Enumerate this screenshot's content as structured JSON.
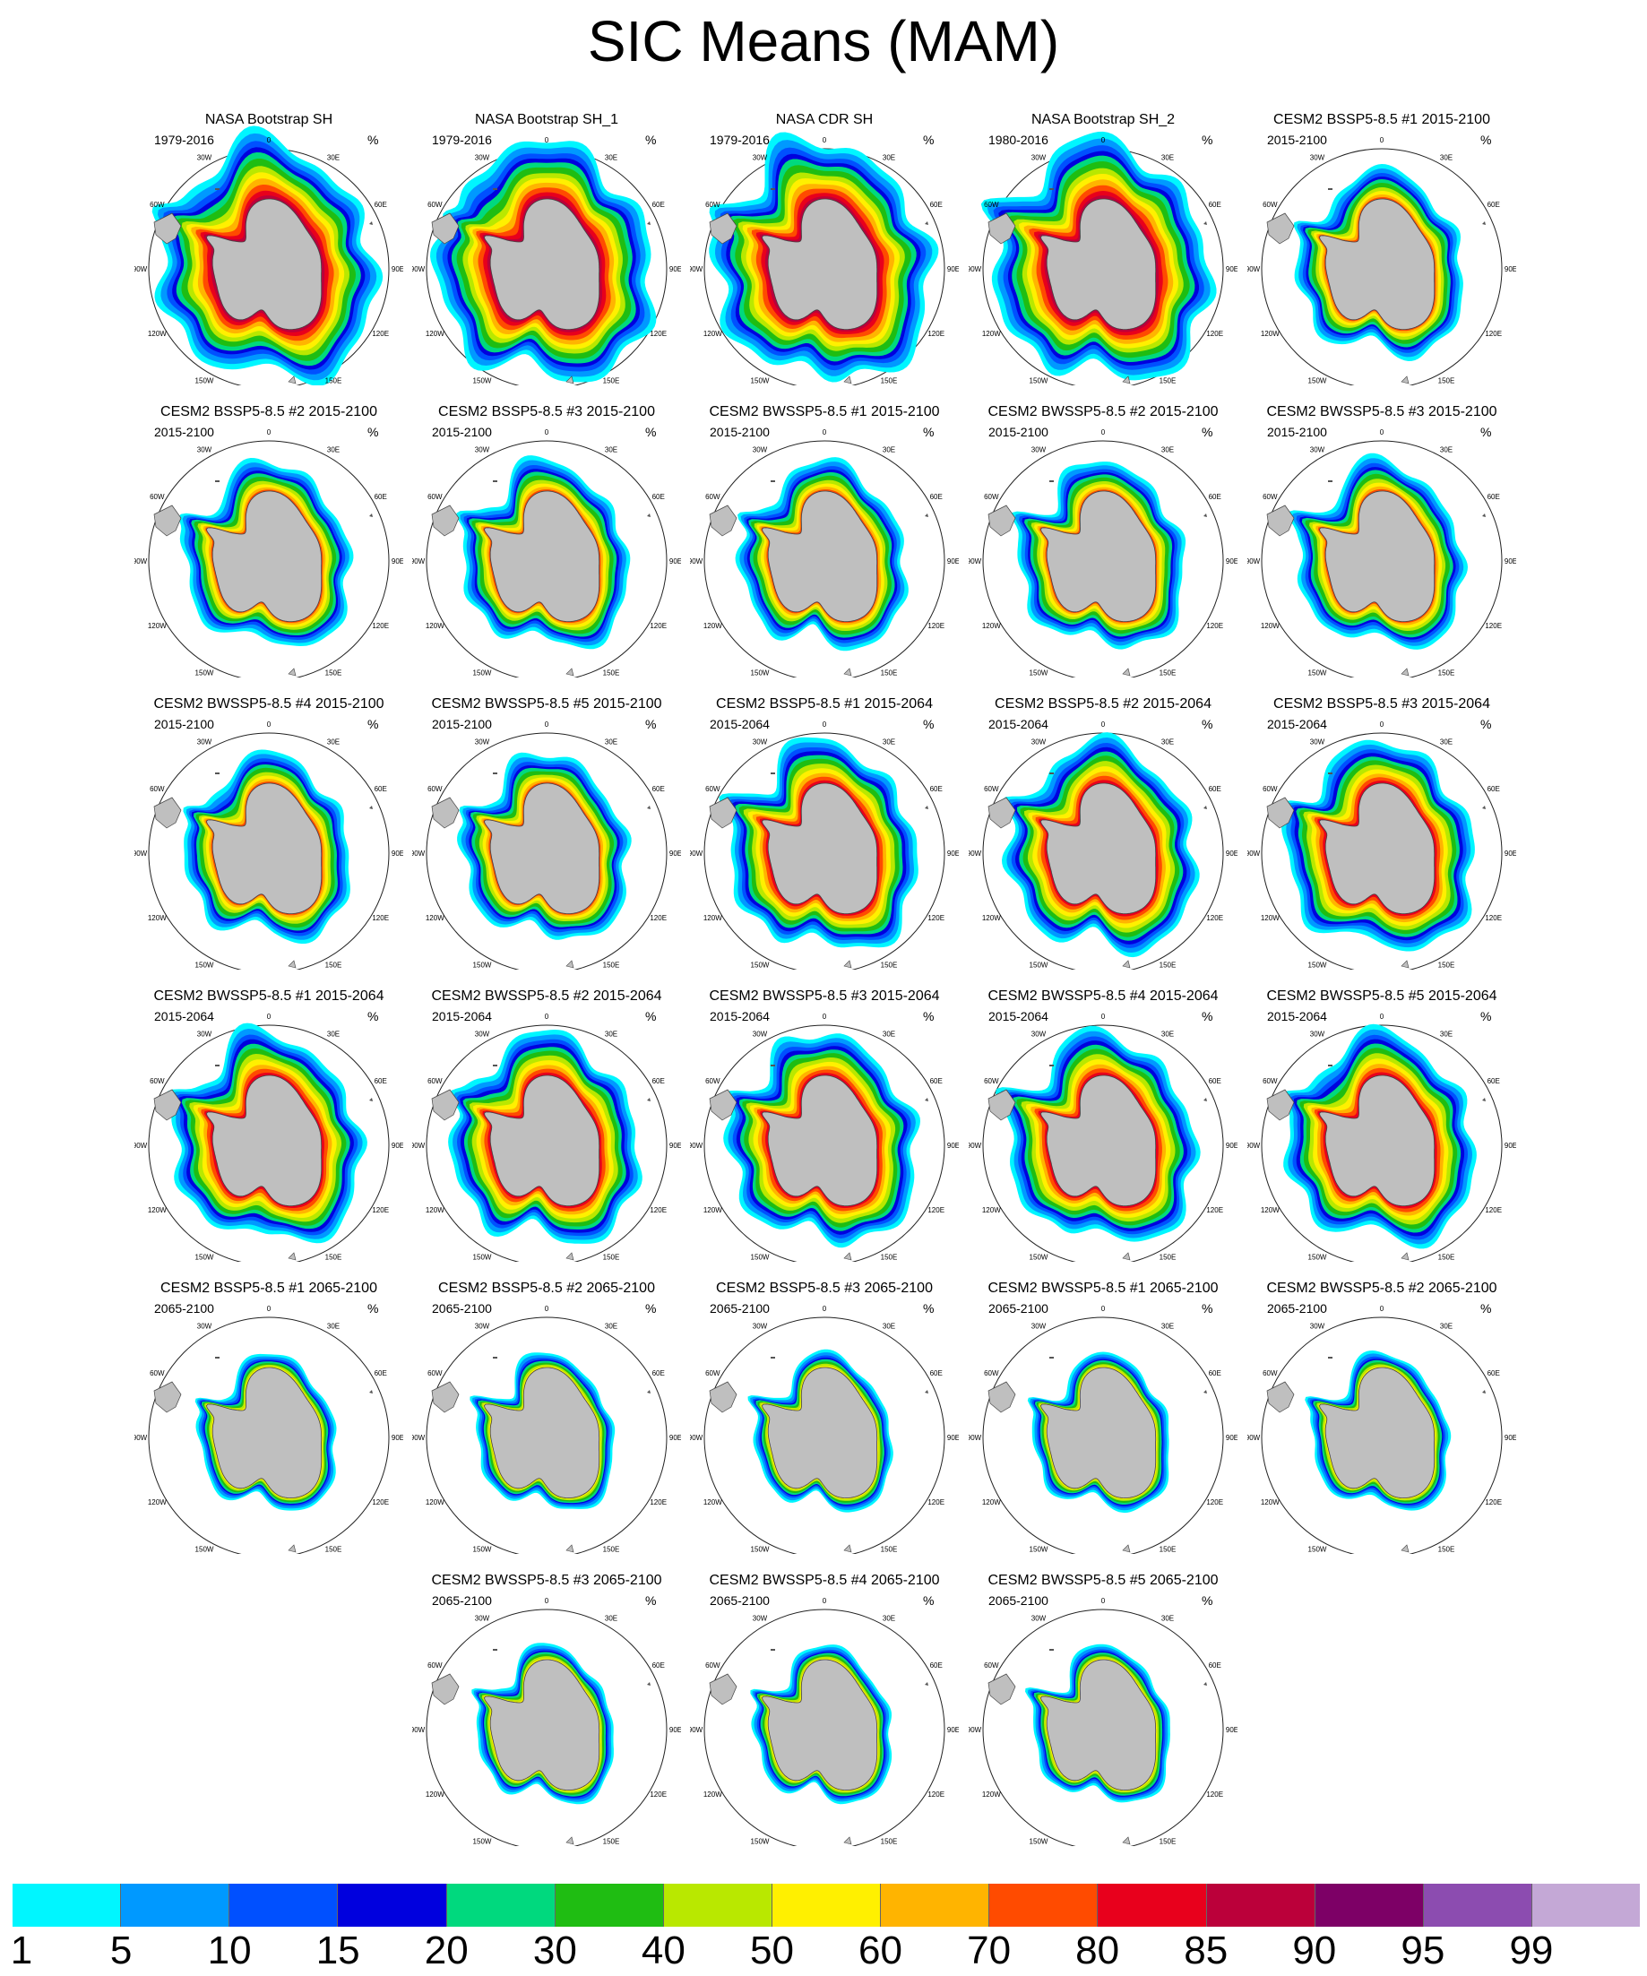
{
  "title": "SIC Means (MAM)",
  "unit": "%",
  "map_labels": {
    "top": "0",
    "left": "90W",
    "right": "90E",
    "bottom": "180",
    "tl": "30W",
    "tr": "30E",
    "ul": "60W",
    "ur": "60E",
    "ll": "120W",
    "lr": "120E",
    "bl": "150W",
    "br": "150E"
  },
  "panels": [
    {
      "title": "NASA Bootstrap SH",
      "period": "1979-2016",
      "extent": 1.0,
      "profile": "obs"
    },
    {
      "title": "NASA Bootstrap SH_1",
      "period": "1979-2016",
      "extent": 1.0,
      "profile": "obs"
    },
    {
      "title": "NASA CDR SH",
      "period": "1979-2016",
      "extent": 1.0,
      "profile": "obs"
    },
    {
      "title": "NASA Bootstrap SH_2",
      "period": "1980-2016",
      "extent": 1.0,
      "profile": "obs"
    },
    {
      "title": "CESM2 BSSP5-8.5 #1 2015-2100",
      "period": "2015-2100",
      "extent": 0.8,
      "profile": "mid"
    },
    {
      "title": "CESM2 BSSP5-8.5 #2 2015-2100",
      "period": "2015-2100",
      "extent": 0.8,
      "profile": "mid"
    },
    {
      "title": "CESM2 BSSP5-8.5 #3 2015-2100",
      "period": "2015-2100",
      "extent": 0.8,
      "profile": "mid"
    },
    {
      "title": "CESM2 BWSSP5-8.5 #1 2015-2100",
      "period": "2015-2100",
      "extent": 0.8,
      "profile": "mid"
    },
    {
      "title": "CESM2 BWSSP5-8.5 #2 2015-2100",
      "period": "2015-2100",
      "extent": 0.8,
      "profile": "mid"
    },
    {
      "title": "CESM2 BWSSP5-8.5 #3 2015-2100",
      "period": "2015-2100",
      "extent": 0.8,
      "profile": "mid"
    },
    {
      "title": "CESM2 BWSSP5-8.5 #4 2015-2100",
      "period": "2015-2100",
      "extent": 0.8,
      "profile": "mid"
    },
    {
      "title": "CESM2 BWSSP5-8.5 #5 2015-2100",
      "period": "2015-2100",
      "extent": 0.8,
      "profile": "mid"
    },
    {
      "title": "CESM2 BSSP5-8.5 #1 2015-2064",
      "period": "2015-2064",
      "extent": 0.9,
      "profile": "high"
    },
    {
      "title": "CESM2 BSSP5-8.5 #2 2015-2064",
      "period": "2015-2064",
      "extent": 0.9,
      "profile": "high"
    },
    {
      "title": "CESM2 BSSP5-8.5 #3 2015-2064",
      "period": "2015-2064",
      "extent": 0.9,
      "profile": "high"
    },
    {
      "title": "CESM2 BWSSP5-8.5 #1 2015-2064",
      "period": "2015-2064",
      "extent": 0.9,
      "profile": "high"
    },
    {
      "title": "CESM2 BWSSP5-8.5 #2 2015-2064",
      "period": "2015-2064",
      "extent": 0.9,
      "profile": "high"
    },
    {
      "title": "CESM2 BWSSP5-8.5 #3 2015-2064",
      "period": "2015-2064",
      "extent": 0.9,
      "profile": "high"
    },
    {
      "title": "CESM2 BWSSP5-8.5 #4 2015-2064",
      "period": "2015-2064",
      "extent": 0.9,
      "profile": "high"
    },
    {
      "title": "CESM2 BWSSP5-8.5 #5 2015-2064",
      "period": "2015-2064",
      "extent": 0.9,
      "profile": "high"
    },
    {
      "title": "CESM2 BSSP5-8.5 #1 2065-2100",
      "period": "2065-2100",
      "extent": 0.65,
      "profile": "low"
    },
    {
      "title": "CESM2 BSSP5-8.5 #2 2065-2100",
      "period": "2065-2100",
      "extent": 0.65,
      "profile": "low"
    },
    {
      "title": "CESM2 BSSP5-8.5 #3 2065-2100",
      "period": "2065-2100",
      "extent": 0.65,
      "profile": "low"
    },
    {
      "title": "CESM2 BWSSP5-8.5 #1 2065-2100",
      "period": "2065-2100",
      "extent": 0.65,
      "profile": "low"
    },
    {
      "title": "CESM2 BWSSP5-8.5 #2 2065-2100",
      "period": "2065-2100",
      "extent": 0.65,
      "profile": "low"
    },
    {
      "title": "CESM2 BWSSP5-8.5 #3 2065-2100",
      "period": "2065-2100",
      "extent": 0.65,
      "profile": "low"
    },
    {
      "title": "CESM2 BWSSP5-8.5 #4 2065-2100",
      "period": "2065-2100",
      "extent": 0.65,
      "profile": "low"
    },
    {
      "title": "CESM2 BWSSP5-8.5 #5 2065-2100",
      "period": "2065-2100",
      "extent": 0.65,
      "profile": "low"
    }
  ],
  "colorbar": {
    "labels": [
      "1",
      "5",
      "10",
      "15",
      "20",
      "30",
      "40",
      "50",
      "60",
      "70",
      "80",
      "85",
      "90",
      "95",
      "99"
    ],
    "colors": [
      "#00f6ff",
      "#0099ff",
      "#0050ff",
      "#0000de",
      "#00d97e",
      "#1fbd12",
      "#b9e800",
      "#fff000",
      "#ffb400",
      "#ff4b00",
      "#e8001c",
      "#bb003a",
      "#7d0066",
      "#8c4cb0",
      "#c4a8d6"
    ]
  },
  "land_color": "#bfbfbf"
}
